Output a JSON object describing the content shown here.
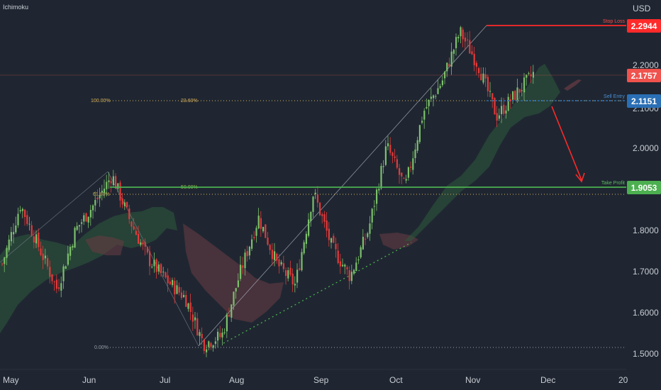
{
  "indicator_label": "Ichimoku",
  "currency": "USD",
  "colors": {
    "bg": "#1f2631",
    "up": "#7bc06b",
    "down": "#e23a3a",
    "stop": "#ff2a2a",
    "current": "#f0524d",
    "entry": "#2a6fb5",
    "take": "#4caf50",
    "fib": "#d8b15a",
    "cloud_up": "#2e5a3d",
    "cloud_down": "#6a3c43"
  },
  "price_tags": {
    "stop_loss": "2.2944",
    "current": "2.1757",
    "sell_entry": "2.1151",
    "take_profit": "1.9053"
  },
  "line_labels": {
    "stop_loss": "Stop Loss",
    "sell_entry": "Sell Entry",
    "take_profit": "Take Profit"
  },
  "fib_labels": {
    "left_100": "100.00%",
    "mid_236": "23.60%",
    "left_618": "61.80%",
    "mid_50": "50.00%",
    "left_0": "0.00%"
  },
  "chart_data": {
    "type": "candlestick",
    "ylim": [
      1.47,
      2.345
    ],
    "y_ticks": [
      "2.2000",
      "2.1000",
      "2.0000",
      "1.8000",
      "1.7000",
      "1.6000",
      "1.5000"
    ],
    "x_ticks": [
      "May",
      "Jun",
      "Jul",
      "Aug",
      "Sep",
      "Oct",
      "Nov",
      "Dec",
      "20"
    ],
    "levels": [
      {
        "name": "Stop Loss",
        "value": 2.2944
      },
      {
        "name": "current",
        "value": 2.1757
      },
      {
        "name": "Sell Entry",
        "value": 2.1151
      },
      {
        "name": "Take Profit",
        "value": 1.9053
      }
    ],
    "fib_levels": [
      {
        "label": "100.00%",
        "value": 2.115
      },
      {
        "label": "61.80%",
        "value": 1.878
      },
      {
        "label": "0.00%",
        "value": 1.518
      }
    ],
    "price_path": [
      [
        "May",
        1.72
      ],
      [
        "May",
        1.86
      ],
      [
        "May",
        1.76
      ],
      [
        "May",
        1.66
      ],
      [
        "May",
        1.8
      ],
      [
        "Jun",
        1.86
      ],
      [
        "Jun",
        1.93
      ],
      [
        "Jun",
        1.82
      ],
      [
        "Jun",
        1.73
      ],
      [
        "Jun",
        1.68
      ],
      [
        "Jul",
        1.64
      ],
      [
        "Jul",
        1.53
      ],
      [
        "Jul",
        1.55
      ],
      [
        "Aug",
        1.7
      ],
      [
        "Aug",
        1.83
      ],
      [
        "Aug",
        1.72
      ],
      [
        "Aug",
        1.67
      ],
      [
        "Sep",
        1.89
      ],
      [
        "Sep",
        1.76
      ],
      [
        "Sep",
        1.69
      ],
      [
        "Sep",
        1.8
      ],
      [
        "Oct",
        2.0
      ],
      [
        "Oct",
        1.9
      ],
      [
        "Oct",
        2.08
      ],
      [
        "Oct",
        2.15
      ],
      [
        "Nov",
        2.27
      ],
      [
        "Nov",
        2.19
      ],
      [
        "Nov",
        2.07
      ],
      [
        "Nov",
        2.12
      ],
      [
        "Nov",
        2.17
      ]
    ]
  }
}
